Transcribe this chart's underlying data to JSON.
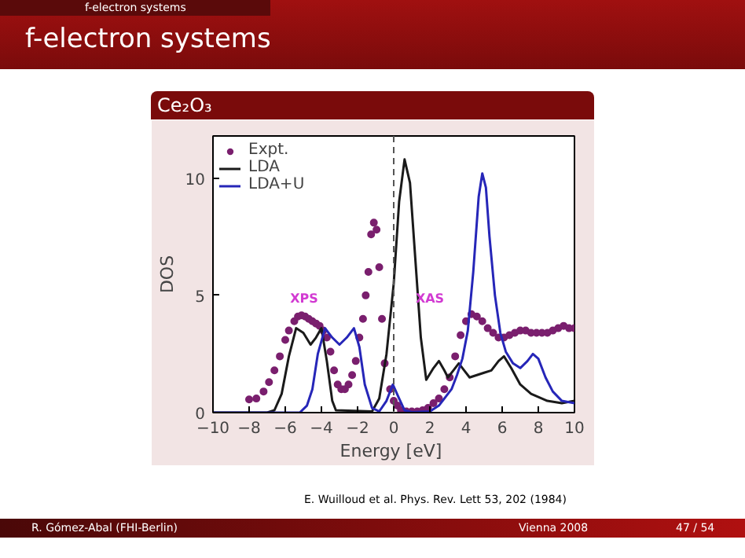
{
  "chart_data": {
    "type": "line",
    "title": "f-electron systems",
    "subtitle": "Ce₂O₃",
    "xlabel": "Energy  [eV]",
    "ylabel": "DOS",
    "xlim": [
      -10,
      10
    ],
    "ylim": [
      0,
      11.8
    ],
    "xticks": [
      -10,
      -8,
      -6,
      -4,
      -2,
      0,
      2,
      4,
      6,
      8,
      10
    ],
    "yticks": [
      0,
      5,
      10
    ],
    "grid": false,
    "legend": "top left",
    "series": [
      {
        "name": "Expt.",
        "type": "scatter",
        "marker": "circle",
        "color": "#7a1f6e",
        "x": [
          -8,
          -7.6,
          -7.2,
          -6.9,
          -6.6,
          -6.3,
          -6.0,
          -5.8,
          -5.5,
          -5.3,
          -5.1,
          -4.9,
          -4.7,
          -4.5,
          -4.3,
          -4.1,
          -3.9,
          -3.7,
          -3.5,
          -3.3,
          -3.1,
          -2.9,
          -2.7,
          -2.5,
          -2.3,
          -2.1,
          -1.9,
          -1.7,
          -1.55,
          -1.4,
          -1.25,
          -1.1,
          -0.95,
          -0.8,
          -0.65,
          -0.5,
          -0.2,
          0.0,
          0.2,
          0.4,
          0.7,
          1.0,
          1.3,
          1.6,
          1.9,
          2.2,
          2.5,
          2.8,
          3.1,
          3.4,
          3.7,
          4.0,
          4.3,
          4.6,
          4.9,
          5.2,
          5.5,
          5.8,
          6.1,
          6.4,
          6.7,
          7.0,
          7.3,
          7.6,
          7.9,
          8.2,
          8.5,
          8.8,
          9.1,
          9.4,
          9.7,
          10.0
        ],
        "values": [
          0.56,
          0.6,
          0.9,
          1.3,
          1.8,
          2.4,
          3.1,
          3.5,
          3.9,
          4.1,
          4.15,
          4.1,
          4.0,
          3.9,
          3.8,
          3.7,
          3.5,
          3.2,
          2.6,
          1.8,
          1.2,
          1.0,
          1.0,
          1.2,
          1.6,
          2.2,
          3.2,
          4.0,
          5.0,
          6.0,
          7.6,
          8.1,
          7.8,
          6.2,
          4.0,
          2.1,
          1.0,
          0.5,
          0.3,
          0.1,
          0.05,
          0.05,
          0.05,
          0.1,
          0.2,
          0.4,
          0.6,
          1.0,
          1.5,
          2.4,
          3.3,
          3.9,
          4.2,
          4.1,
          3.9,
          3.6,
          3.4,
          3.2,
          3.2,
          3.3,
          3.4,
          3.5,
          3.5,
          3.4,
          3.4,
          3.4,
          3.4,
          3.5,
          3.6,
          3.7,
          3.6,
          3.6
        ]
      },
      {
        "name": "LDA",
        "color": "#1a1a1a",
        "x": [
          -10,
          -7.0,
          -6.6,
          -6.2,
          -5.8,
          -5.4,
          -5.0,
          -4.6,
          -4.3,
          -4.0,
          -3.7,
          -3.4,
          -3.2,
          -1.2,
          -0.8,
          -0.4,
          0.0,
          0.3,
          0.6,
          0.9,
          1.2,
          1.5,
          1.8,
          2.2,
          2.5,
          2.8,
          3.0,
          3.3,
          3.6,
          3.9,
          4.2,
          4.6,
          5.0,
          5.4,
          5.8,
          6.1,
          6.5,
          7.0,
          7.6,
          8.5,
          9.3,
          10.0
        ],
        "values": [
          0,
          0,
          0.1,
          0.8,
          2.4,
          3.6,
          3.4,
          2.9,
          3.2,
          3.6,
          2.2,
          0.5,
          0.1,
          0.05,
          0.6,
          2.5,
          5.5,
          9.0,
          10.8,
          9.8,
          6.5,
          3.2,
          1.4,
          1.9,
          2.2,
          1.8,
          1.5,
          1.8,
          2.1,
          1.8,
          1.5,
          1.6,
          1.7,
          1.8,
          2.2,
          2.4,
          1.9,
          1.2,
          0.8,
          0.5,
          0.4,
          0.5
        ]
      },
      {
        "name": "LDA+U",
        "color": "#2626b8",
        "x": [
          -10,
          -5.2,
          -4.8,
          -4.5,
          -4.2,
          -3.8,
          -3.4,
          -3.0,
          -2.6,
          -2.2,
          -1.9,
          -1.6,
          -1.2,
          -0.8,
          -0.4,
          -0.05,
          0.3,
          0.6,
          1.0,
          2.0,
          2.5,
          2.9,
          3.2,
          3.5,
          3.8,
          4.1,
          4.4,
          4.7,
          4.9,
          5.1,
          5.3,
          5.6,
          5.9,
          6.2,
          6.6,
          7.0,
          7.4,
          7.7,
          8.0,
          8.4,
          8.8,
          9.3,
          10.0
        ],
        "values": [
          0,
          0,
          0.3,
          1.0,
          2.5,
          3.6,
          3.2,
          2.9,
          3.2,
          3.6,
          2.8,
          1.2,
          0.2,
          0.05,
          0.5,
          1.2,
          0.6,
          0.1,
          0.02,
          0.05,
          0.3,
          0.7,
          1.0,
          1.6,
          2.3,
          3.5,
          6.0,
          9.2,
          10.2,
          9.6,
          7.5,
          5.0,
          3.4,
          2.6,
          2.1,
          1.9,
          2.2,
          2.5,
          2.3,
          1.5,
          0.9,
          0.5,
          0.4
        ]
      }
    ],
    "ref_lines": [
      {
        "axis": "x",
        "value": 0,
        "label": null,
        "color": "#555555",
        "line_style": "dashed"
      }
    ],
    "annotations": [
      "f-electron systems",
      "XPS",
      "XAS",
      "E. Wuilloud et al. Phys. Rev. Lett 53, 202 (1984)",
      "R. Gómez-Abal (FHI-Berlin)",
      "Vienna 2008",
      "47 / 54"
    ]
  }
}
